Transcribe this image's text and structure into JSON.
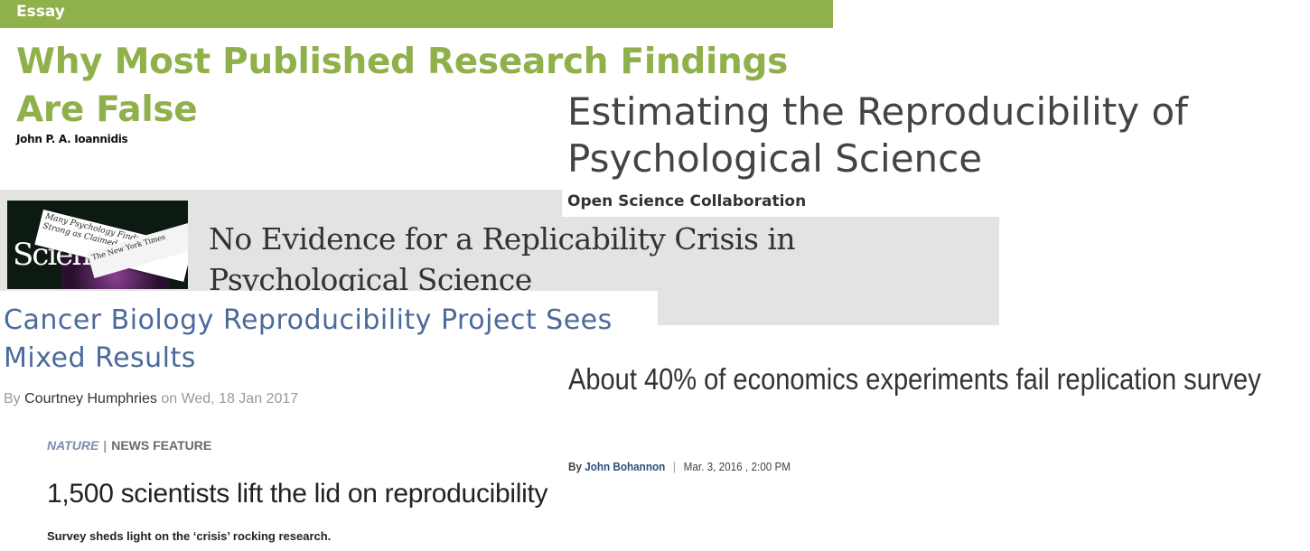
{
  "essay": {
    "label": "Essay",
    "title": "Why Most Published Research Findings Are False",
    "author": "John P. A. Ioannidis"
  },
  "osc": {
    "title": "Estimating the Reproducibility of Psychological Science",
    "author": "Open Science Collaboration"
  },
  "replicability": {
    "title": "No Evidence for a Replicability Crisis in Psychological Science",
    "thumbnail": {
      "masthead": "Science",
      "clip_headline": "Many Psychology Findings Not as Strong as Claimed, Study Says",
      "clip_source": "The New York Times"
    }
  },
  "cancer": {
    "title": "Cancer Biology Reproducibility Project Sees Mixed Results",
    "by_prefix": "By",
    "author": "Courtney Humphries",
    "date_prefix": "on",
    "date": "Wed, 18 Jan 2017"
  },
  "economics": {
    "title": "About 40% of economics experiments fail replication survey",
    "by_prefix": "By",
    "author": "John Bohannon",
    "date": "Mar. 3, 2016 , 2:00 PM"
  },
  "nature": {
    "journal": "NATURE",
    "separator": "|",
    "section": "NEWS FEATURE",
    "title": "1,500 scientists lift the lid on reproducibility",
    "standfirst": "Survey sheds light on the ‘crisis’ rocking research."
  },
  "colors": {
    "essay_green": "#8fb04a",
    "cancer_blue": "#4a6a9a",
    "gray_panel": "#e3e3e1"
  }
}
